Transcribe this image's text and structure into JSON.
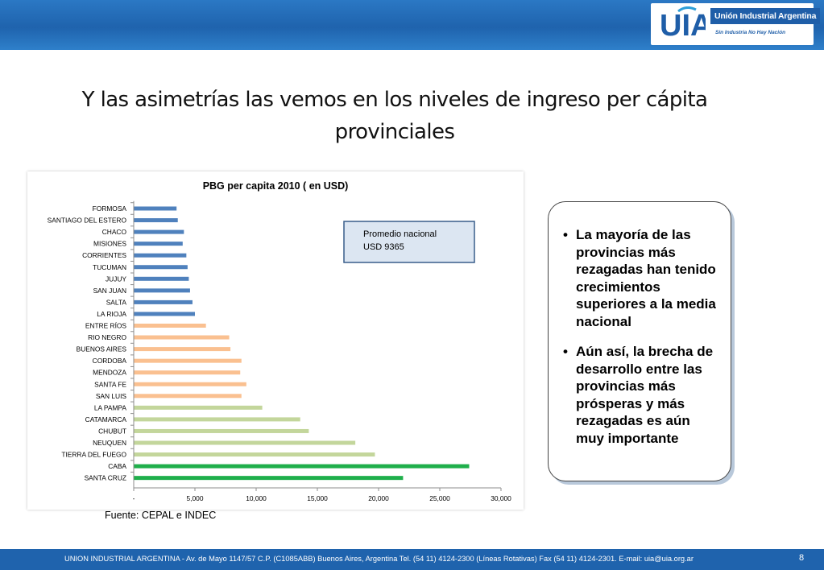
{
  "header": {
    "brand_name": "Unión Industrial Argentina",
    "slogan": "Sin Industria No Hay Nación",
    "logo_letters": "UIA"
  },
  "slide": {
    "title_line1": "Y las asimetrías las vemos en los niveles de ingreso per cápita",
    "title_line2": "provinciales"
  },
  "chart_data": {
    "type": "bar",
    "orientation": "horizontal",
    "title": "PBG per capita 2010 ( en USD)",
    "xlim": [
      0,
      30000
    ],
    "x_ticks": [
      "-",
      "5,000",
      "10,000",
      "15,000",
      "20,000",
      "25,000",
      "30,000"
    ],
    "x_tick_values": [
      0,
      5000,
      10000,
      15000,
      20000,
      25000,
      30000
    ],
    "grid": false,
    "categories": [
      "FORMOSA",
      "SANTIAGO DEL ESTERO",
      "CHACO",
      "MISIONES",
      "CORRIENTES",
      "TUCUMAN",
      "JUJUY",
      "SAN JUAN",
      "SALTA",
      "LA RIOJA",
      "ENTRE RÍOS",
      "RIO NEGRO",
      "BUENOS AIRES",
      "CORDOBA",
      "MENDOZA",
      "SANTA FE",
      "SAN LUIS",
      "LA PAMPA",
      "CATAMARCA",
      "CHUBUT",
      "NEUQUEN",
      "TIERRA DEL FUEGO",
      "CABA",
      "SANTA CRUZ"
    ],
    "values": [
      3500,
      3600,
      4100,
      4000,
      4300,
      4400,
      4500,
      4600,
      4800,
      5000,
      5900,
      7800,
      7900,
      8800,
      8700,
      9200,
      8800,
      10500,
      13600,
      14300,
      18100,
      19700,
      27400,
      22000
    ],
    "bar_colors": [
      "#4f81bd",
      "#4f81bd",
      "#4f81bd",
      "#4f81bd",
      "#4f81bd",
      "#4f81bd",
      "#4f81bd",
      "#4f81bd",
      "#4f81bd",
      "#4f81bd",
      "#fac090",
      "#fac090",
      "#fac090",
      "#fac090",
      "#fac090",
      "#fac090",
      "#fac090",
      "#c3d69b",
      "#c3d69b",
      "#c3d69b",
      "#c3d69b",
      "#c3d69b",
      "#1faf4b",
      "#1faf4b"
    ],
    "annotation": {
      "line1": "Promedio nacional",
      "line2": "USD 9365"
    }
  },
  "callout": {
    "bullets": [
      "La mayoría de las provincias más rezagadas han tenido crecimientos superiores a la media nacional",
      "Aún así, la brecha de desarrollo entre las provincias más prósperas y más rezagadas es aún muy importante"
    ]
  },
  "source": "Fuente: CEPAL  e INDEC",
  "footer": {
    "text": "UNION INDUSTRIAL ARGENTINA -  Av. de Mayo 1147/57  C.P. (C1085ABB)  Buenos Aires, Argentina Tel. (54 11) 4124-2300   (Líneas Rotativas)  Fax (54 11) 4124-2301.   E-mail: uia@uia.org.ar",
    "page_number": "8"
  },
  "colors": {
    "header_blue": "#1f63ad",
    "blue_bars": "#4f81bd",
    "orange_bars": "#fac090",
    "light_green_bars": "#c3d69b",
    "green_bars": "#1faf4b",
    "annotation_fill": "#dce6f2"
  }
}
